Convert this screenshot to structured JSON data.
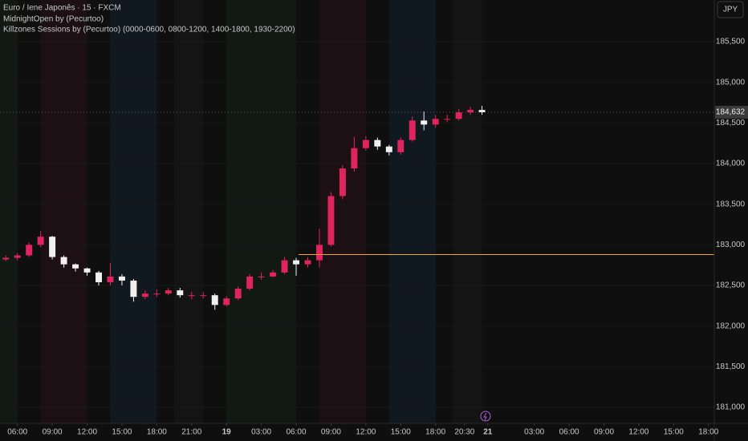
{
  "chart_data": {
    "type": "candlestick",
    "title": "Euro / Iene Japonês · 15 · FXCM",
    "indicators": [
      "MidnightOpen by (Pecurtoo)",
      "Killzones Sessions by (Pecurtoo) (0000-0600, 0800-1200, 1400-1800, 1930-2200)"
    ],
    "currency": "JPY",
    "up_color": "#e0245e",
    "down_color": "#f0f0f0",
    "x": [
      5,
      6,
      7,
      8,
      9,
      10,
      11,
      12,
      13,
      14,
      15,
      16,
      17,
      18,
      19,
      20,
      21,
      22,
      23,
      24,
      25,
      26,
      27,
      28,
      29,
      30,
      31,
      32,
      33,
      34,
      35,
      36,
      37,
      38,
      39,
      40,
      41,
      42,
      43,
      44,
      45,
      46
    ],
    "open": [
      182820,
      182840,
      182870,
      183000,
      183100,
      182850,
      182760,
      182710,
      182660,
      182540,
      182610,
      182560,
      182360,
      182400,
      182400,
      182440,
      182380,
      182380,
      182380,
      182260,
      182340,
      182460,
      182610,
      182610,
      182660,
      182810,
      182760,
      182810,
      183000,
      183600,
      183940,
      184190,
      184290,
      184210,
      184140,
      184290,
      184530,
      184480,
      184550,
      184550,
      184630,
      184660
    ],
    "high": [
      182870,
      182900,
      183030,
      183170,
      183110,
      182870,
      182770,
      182720,
      182680,
      182780,
      182640,
      182580,
      182440,
      182450,
      182470,
      182470,
      182420,
      182420,
      182400,
      182370,
      182490,
      182640,
      182660,
      182690,
      182850,
      182840,
      182850,
      183200,
      183650,
      183980,
      184330,
      184340,
      184320,
      184230,
      184320,
      184580,
      184640,
      184600,
      184600,
      184670,
      184700,
      184710
    ],
    "low": [
      182800,
      182810,
      182850,
      182970,
      182820,
      182720,
      182670,
      182620,
      182500,
      182500,
      182500,
      182300,
      182330,
      182360,
      182380,
      182350,
      182330,
      182340,
      182200,
      182240,
      182320,
      182440,
      182570,
      182600,
      182640,
      182620,
      182720,
      182720,
      182980,
      183560,
      183900,
      184160,
      184170,
      184100,
      184110,
      184270,
      184410,
      184440,
      184510,
      184530,
      184600,
      184600
    ],
    "close": [
      182840,
      182870,
      183000,
      183100,
      182850,
      182760,
      182710,
      182660,
      182540,
      182610,
      182560,
      182360,
      182400,
      182400,
      182440,
      182380,
      182380,
      182380,
      182260,
      182340,
      182460,
      182610,
      182610,
      182660,
      182810,
      182760,
      182810,
      183000,
      183600,
      183940,
      184190,
      184290,
      184210,
      184140,
      184290,
      184530,
      184480,
      184550,
      184550,
      184630,
      184660,
      184632
    ],
    "last_price": {
      "value": 184632,
      "label": "184,632"
    },
    "midnight_open": {
      "price": 182880,
      "from": 30.2,
      "color": "#f5a623"
    },
    "sessions": [
      {
        "x": [
          4.5,
          6
        ],
        "color": "rgba(76,175,80,0.07)"
      },
      {
        "x": [
          8,
          12
        ],
        "color": "rgba(233,30,99,0.06)"
      },
      {
        "x": [
          14,
          18
        ],
        "color": "rgba(33,150,243,0.08)"
      },
      {
        "x": [
          19.5,
          22
        ],
        "color": "rgba(160,160,160,0.04)"
      },
      {
        "x": [
          24,
          30
        ],
        "color": "rgba(76,175,80,0.07)"
      },
      {
        "x": [
          32,
          36
        ],
        "color": "rgba(233,30,99,0.06)"
      },
      {
        "x": [
          38,
          42
        ],
        "color": "rgba(33,150,243,0.08)"
      },
      {
        "x": [
          43.5,
          46
        ],
        "color": "rgba(160,160,160,0.04)"
      }
    ],
    "xlim": [
      4.5,
      66
    ],
    "xticks": [
      {
        "value": 6,
        "label": "06:00"
      },
      {
        "value": 9,
        "label": "09:00"
      },
      {
        "value": 12,
        "label": "12:00"
      },
      {
        "value": 15,
        "label": "15:00"
      },
      {
        "value": 18,
        "label": "18:00"
      },
      {
        "value": 21,
        "label": "21:00"
      },
      {
        "value": 24,
        "label": "19"
      },
      {
        "value": 27,
        "label": "03:00"
      },
      {
        "value": 30,
        "label": "06:00"
      },
      {
        "value": 33,
        "label": "09:00"
      },
      {
        "value": 36,
        "label": "12:00"
      },
      {
        "value": 39,
        "label": "15:00"
      },
      {
        "value": 42,
        "label": "18:00"
      },
      {
        "value": 44.5,
        "label": "20:30"
      },
      {
        "value": 46.5,
        "label": "21"
      },
      {
        "value": 50.5,
        "label": "03:00"
      },
      {
        "value": 53.5,
        "label": "06:00"
      },
      {
        "value": 56.5,
        "label": "09:00"
      },
      {
        "value": 59.5,
        "label": "12:00"
      },
      {
        "value": 62.5,
        "label": "15:00"
      },
      {
        "value": 65.5,
        "label": "18:00"
      }
    ],
    "ylim": [
      180803,
      186013
    ],
    "yticks": [
      {
        "value": 181000,
        "label": "181,000"
      },
      {
        "value": 181500,
        "label": "181,500"
      },
      {
        "value": 182000,
        "label": "182,000"
      },
      {
        "value": 182500,
        "label": "182,500"
      },
      {
        "value": 183000,
        "label": "183,000"
      },
      {
        "value": 183500,
        "label": "183,500"
      },
      {
        "value": 184000,
        "label": "184,000"
      },
      {
        "value": 184500,
        "label": "184,500"
      },
      {
        "value": 185000,
        "label": "185,000"
      },
      {
        "value": 185500,
        "label": "185,500"
      }
    ]
  }
}
